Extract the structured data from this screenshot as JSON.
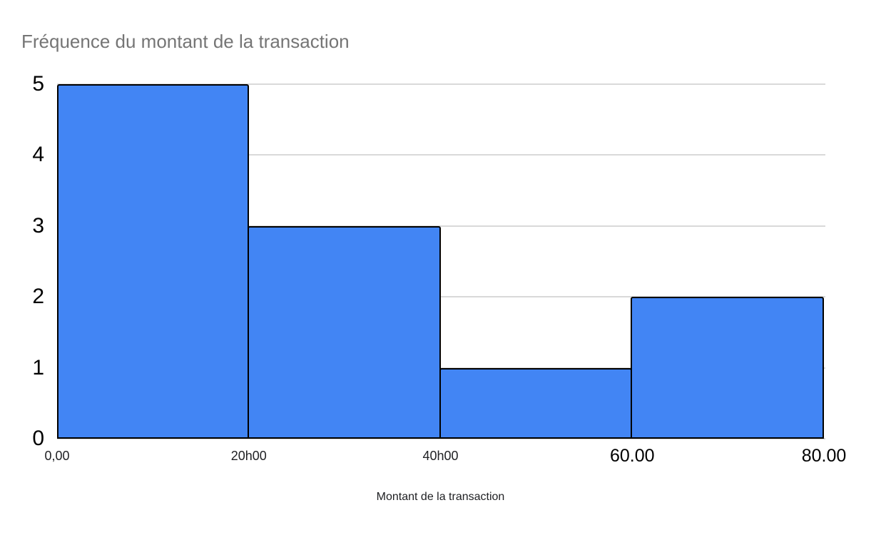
{
  "chart_data": {
    "type": "bar",
    "subtype": "histogram",
    "title": "Fréquence du montant de la transaction",
    "xlabel": "Montant de la transaction",
    "ylabel": "",
    "bins": [
      {
        "range": "0-20",
        "value": 5
      },
      {
        "range": "20-40",
        "value": 3
      },
      {
        "range": "40-60",
        "value": 1
      },
      {
        "range": "60-80",
        "value": 2
      }
    ],
    "x_tick_labels": [
      {
        "text": "0,00",
        "size": "small"
      },
      {
        "text": "20h00",
        "size": "small"
      },
      {
        "text": "40h00",
        "size": "small"
      },
      {
        "text": "60.00",
        "size": "large"
      },
      {
        "text": "80.00",
        "size": "large"
      }
    ],
    "y_ticks": [
      0,
      1,
      2,
      3,
      4,
      5
    ],
    "ylim": [
      0,
      5
    ],
    "grid": true,
    "legend_position": "none",
    "colors": {
      "bar_fill": "#4285F4",
      "bar_border": "#000000",
      "gridline": "#D9D9D9",
      "title_text": "#757575",
      "axis_text": "#000000",
      "x_axis_title_text": "#202124",
      "background": "#FFFFFF"
    }
  }
}
